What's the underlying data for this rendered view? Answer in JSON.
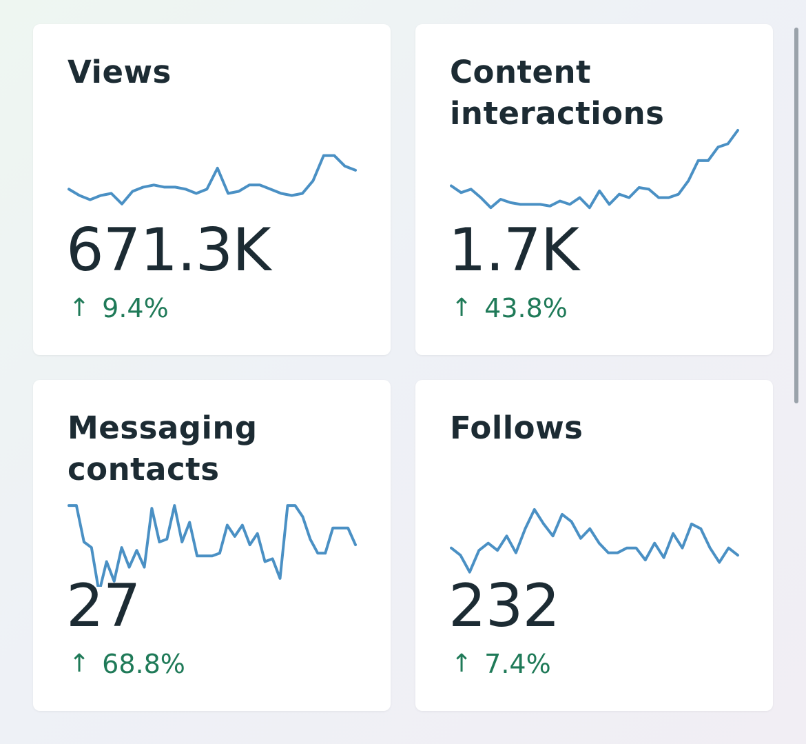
{
  "cards": [
    {
      "title": "Views",
      "value": "671.3K",
      "change": "9.4%",
      "change_direction": "up",
      "sparkline": [
        28,
        31,
        33,
        31,
        30,
        35,
        29,
        27,
        26,
        27,
        27,
        28,
        30,
        28,
        18,
        30,
        29,
        26,
        26,
        28,
        30,
        31,
        30,
        24,
        12,
        12,
        17,
        19
      ],
      "sparkline_range": [
        0,
        40
      ]
    },
    {
      "title": "Content interactions",
      "value": "1.7K",
      "change": "43.8%",
      "change_direction": "up",
      "sparkline": [
        73,
        77,
        75,
        80,
        86,
        81,
        83,
        84,
        84,
        84,
        85,
        82,
        84,
        80,
        86,
        76,
        84,
        78,
        80,
        74,
        75,
        80,
        80,
        78,
        70,
        58,
        58,
        50,
        48,
        40
      ],
      "sparkline_range": [
        40,
        90
      ]
    },
    {
      "title": "Messaging contacts",
      "value": "27",
      "change": "68.8%",
      "change_direction": "up",
      "sparkline": [
        2,
        2,
        15,
        17,
        33,
        22,
        29,
        17,
        24,
        18,
        24,
        3,
        15,
        14,
        2,
        15,
        8,
        20,
        20,
        20,
        19,
        9,
        13,
        9,
        16,
        12,
        22,
        21,
        28,
        2,
        2,
        6,
        14,
        19,
        19,
        10,
        10,
        10,
        16
      ],
      "sparkline_range": [
        0,
        30
      ]
    },
    {
      "title": "Follows",
      "value": "232",
      "change": "7.4%",
      "change_direction": "up",
      "sparkline": [
        20,
        23,
        30,
        21,
        18,
        21,
        15,
        22,
        12,
        4,
        10,
        15,
        6,
        9,
        16,
        12,
        18,
        22,
        22,
        20,
        20,
        25,
        18,
        24,
        14,
        20,
        10,
        12,
        20,
        26,
        20,
        23
      ],
      "sparkline_range": [
        0,
        35
      ]
    }
  ],
  "colors": {
    "sparkline": "#4a90c4",
    "positive_change": "#1f7a58",
    "text": "#1c2b33"
  },
  "icons": {
    "change_up": "arrow-up-icon"
  }
}
